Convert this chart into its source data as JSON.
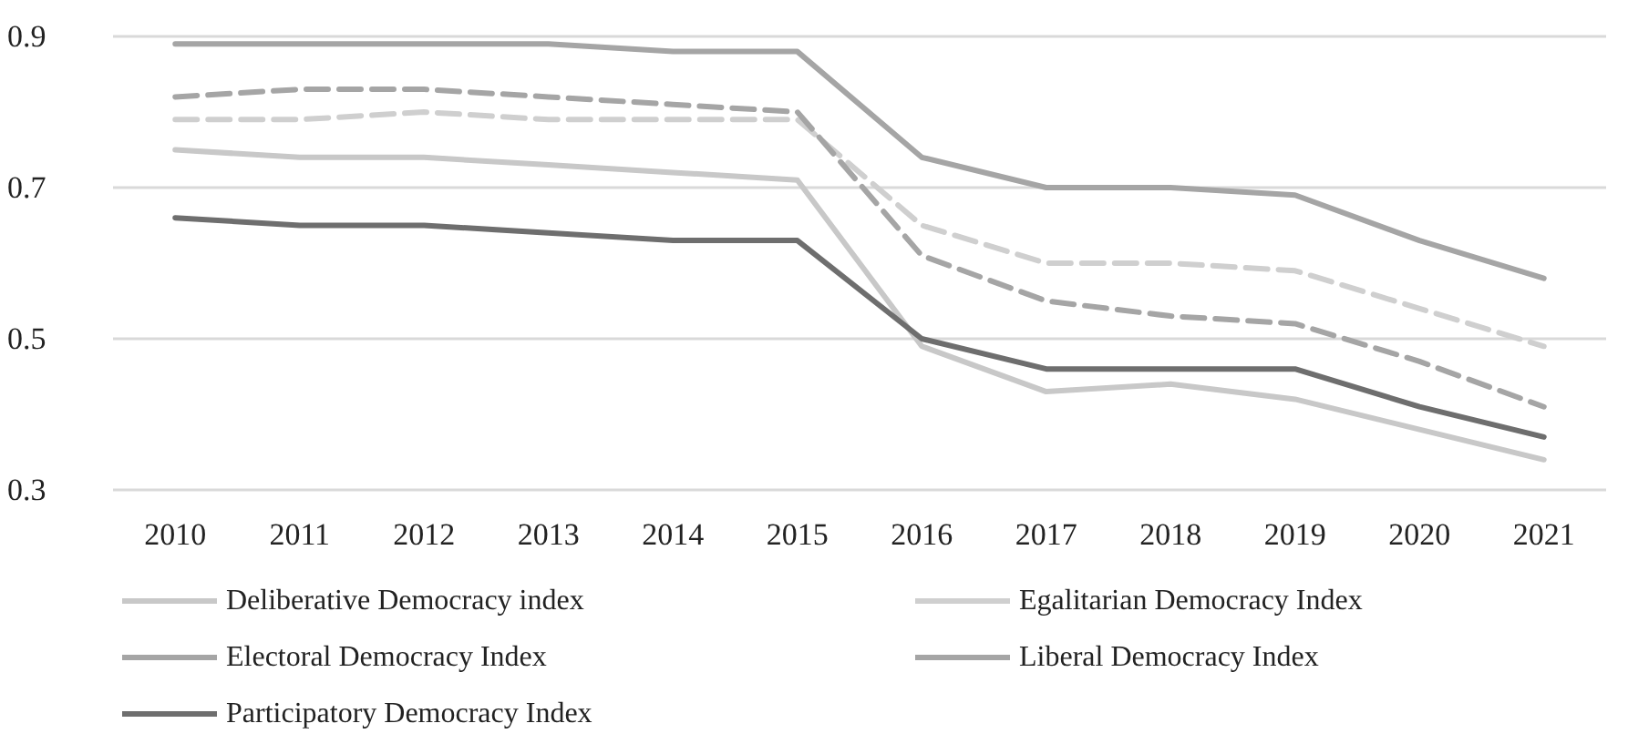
{
  "chart_data": {
    "type": "line",
    "categories": [
      "2010",
      "2011",
      "2012",
      "2013",
      "2014",
      "2015",
      "2016",
      "2017",
      "2018",
      "2019",
      "2020",
      "2021"
    ],
    "series": [
      {
        "name": "Deliberative Democracy index",
        "color": "#c8c8c8",
        "line_style": "solid",
        "values": [
          0.75,
          0.74,
          0.74,
          0.73,
          0.72,
          0.71,
          0.49,
          0.43,
          0.44,
          0.42,
          0.38,
          0.34
        ]
      },
      {
        "name": "Egalitarian Democracy Index",
        "color": "#cfcfcf",
        "line_style": "dashed",
        "values": [
          0.79,
          0.79,
          0.8,
          0.79,
          0.79,
          0.79,
          0.65,
          0.6,
          0.6,
          0.59,
          0.54,
          0.49
        ]
      },
      {
        "name": "Electoral Democracy Index",
        "color": "#a5a5a5",
        "line_style": "solid",
        "values": [
          0.89,
          0.89,
          0.89,
          0.89,
          0.88,
          0.88,
          0.74,
          0.7,
          0.7,
          0.69,
          0.63,
          0.58
        ]
      },
      {
        "name": "Liberal Democracy Index",
        "color": "#a5a5a5",
        "line_style": "dashed",
        "values": [
          0.82,
          0.83,
          0.83,
          0.82,
          0.81,
          0.8,
          0.61,
          0.55,
          0.53,
          0.52,
          0.47,
          0.41
        ]
      },
      {
        "name": "Participatory Democracy Index",
        "color": "#6e6e6e",
        "line_style": "solid",
        "values": [
          0.66,
          0.65,
          0.65,
          0.64,
          0.63,
          0.63,
          0.5,
          0.46,
          0.46,
          0.46,
          0.41,
          0.37
        ]
      }
    ],
    "ylim": [
      0.3,
      0.9
    ],
    "yticks": [
      0.3,
      0.5,
      0.7,
      0.9
    ],
    "grid": "y",
    "legend": "bottom",
    "marker": "none"
  }
}
